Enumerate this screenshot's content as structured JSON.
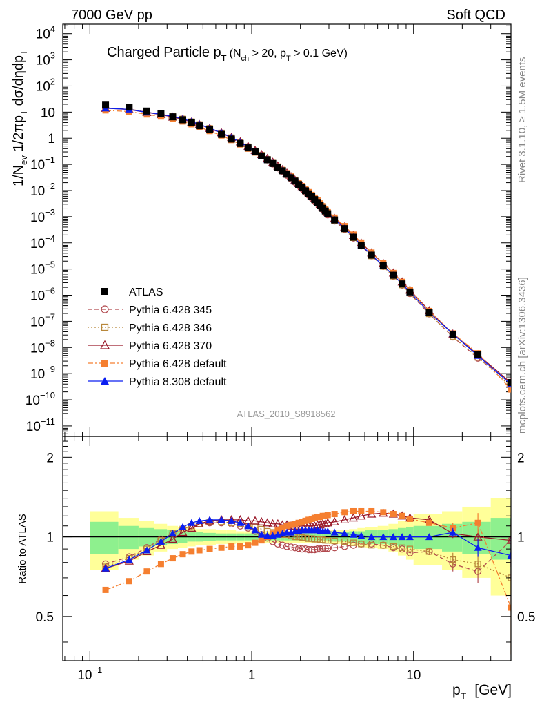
{
  "header": {
    "left": "7000 GeV pp",
    "right": "Soft QCD",
    "side_rivet": "Rivet 3.1.10, ≥ 1.5M events",
    "side_mcplots": "mcplots.cern.ch [arXiv:1306.3436]",
    "analysis_id": "ATLAS_2010_S8918562"
  },
  "chart_data": [
    {
      "type": "scatter",
      "panel": "main",
      "title": "Charged Particle p_T Spectrum",
      "title_sub": "(N_ch > 20, p_T > 0.1 GeV)",
      "title_main_text": "Charged Particle p",
      "title_main_sub": "T",
      "title_cond_pre": "(N",
      "title_cond_sub1": "ch",
      "title_cond_mid": " > 20, p",
      "title_cond_sub2": "T",
      "title_cond_post": " > 0.1 GeV)",
      "ylabel": "1/N_ev 1/2πp_T dσ/dηdp_T",
      "ylabel_parts": {
        "a": "1/N",
        "a_sub": "ev",
        "b": " 1/2πp",
        "b_sub": "T",
        "c": " dσ/dηdp",
        "c_sub": "T"
      },
      "x_scale": "log",
      "y_scale": "log",
      "xlim": [
        0.068,
        40
      ],
      "ylim": [
        4e-12,
        23000.0
      ],
      "grid": false,
      "legend_position": "lower-left",
      "y_tick_exponents": [
        -11,
        -10,
        -9,
        -8,
        -7,
        -6,
        -5,
        -4,
        -3,
        -2,
        -1,
        0,
        1,
        2,
        3,
        4
      ],
      "y_tick_plain": {
        "0": "1",
        "1": "10"
      },
      "series": [
        {
          "name": "ATLAS",
          "color": "#000000",
          "marker": "square-filled",
          "line": "none"
        },
        {
          "name": "Pythia 6.428 345",
          "color": "#b24a4f",
          "marker": "circle-open",
          "line": "dashed"
        },
        {
          "name": "Pythia 6.428 346",
          "color": "#b8873a",
          "marker": "square-open",
          "line": "dotted"
        },
        {
          "name": "Pythia 6.428 370",
          "color": "#9a1a2a",
          "marker": "triangle-open",
          "line": "solid"
        },
        {
          "name": "Pythia 6.428 default",
          "color": "#f57f30",
          "marker": "square-filled",
          "line": "dashdot"
        },
        {
          "name": "Pythia 8.308 default",
          "color": "#0a1ef0",
          "marker": "triangle-filled",
          "line": "solid"
        }
      ],
      "atlas_spectrum": [
        [
          0.125,
          18.5
        ],
        [
          0.175,
          15.5
        ],
        [
          0.225,
          11.0
        ],
        [
          0.275,
          8.6
        ],
        [
          0.325,
          6.6
        ],
        [
          0.375,
          5.1
        ],
        [
          0.425,
          3.9
        ],
        [
          0.475,
          3.0
        ],
        [
          0.55,
          2.1
        ],
        [
          0.65,
          1.4
        ],
        [
          0.75,
          0.93
        ],
        [
          0.85,
          0.63
        ],
        [
          0.95,
          0.43
        ],
        [
          1.05,
          0.3
        ],
        [
          1.15,
          0.21
        ],
        [
          1.25,
          0.15
        ],
        [
          1.35,
          0.108
        ],
        [
          1.45,
          0.078
        ],
        [
          1.55,
          0.057
        ],
        [
          1.65,
          0.042
        ],
        [
          1.75,
          0.031
        ],
        [
          1.85,
          0.023
        ],
        [
          1.95,
          0.017
        ],
        [
          2.05,
          0.013
        ],
        [
          2.15,
          0.0098
        ],
        [
          2.25,
          0.0075
        ],
        [
          2.35,
          0.0058
        ],
        [
          2.45,
          0.0045
        ],
        [
          2.55,
          0.0035
        ],
        [
          2.65,
          0.0027
        ],
        [
          2.75,
          0.0021
        ],
        [
          2.85,
          0.00165
        ],
        [
          2.95,
          0.0013
        ],
        [
          3.25,
          0.00075
        ],
        [
          3.75,
          0.00035
        ],
        [
          4.25,
          0.000165
        ],
        [
          4.75,
          8.2e-05
        ],
        [
          5.5,
          3.4e-05
        ],
        [
          6.5,
          1.35e-05
        ],
        [
          7.5,
          5.8e-06
        ],
        [
          8.5,
          2.7e-06
        ],
        [
          9.5,
          1.33e-06
        ],
        [
          12.5,
          2.2e-07
        ],
        [
          17.5,
          3.2e-08
        ],
        [
          25.0,
          5.3e-09
        ],
        [
          40.0,
          4.6e-10
        ]
      ]
    },
    {
      "type": "line",
      "panel": "ratio",
      "ylabel": "Ratio to ATLAS",
      "x_scale": "log",
      "y_scale": "log",
      "xlim": [
        0.068,
        40
      ],
      "ylim": [
        0.34,
        2.4
      ],
      "reference_line": 1,
      "xlabel_main": "p",
      "xlabel_sub": "T",
      "xlabel_unit": "[GeV]",
      "x_ticks": [
        {
          "value": 0.1,
          "base": "10",
          "exp": "−1"
        },
        {
          "value": 1,
          "base": "1",
          "exp": ""
        },
        {
          "value": 10,
          "base": "10",
          "exp": ""
        }
      ],
      "y_ticks": [
        {
          "value": 0.5,
          "label": "0.5"
        },
        {
          "value": 1,
          "label": "1"
        },
        {
          "value": 2,
          "label": "2"
        }
      ],
      "band_edges": [
        0.1,
        0.15,
        0.2,
        0.25,
        0.3,
        0.35,
        0.4,
        0.45,
        0.5,
        0.6,
        0.7,
        0.8,
        0.9,
        1.0,
        1.1,
        1.2,
        1.3,
        1.4,
        1.5,
        1.6,
        1.7,
        1.8,
        1.9,
        2.0,
        2.1,
        2.2,
        2.3,
        2.4,
        2.5,
        2.6,
        2.7,
        2.8,
        2.9,
        3.0,
        3.5,
        4.0,
        4.5,
        5.0,
        6.0,
        7.0,
        8.0,
        9.0,
        10.0,
        15.0,
        20.0,
        30.0,
        40.0
      ],
      "band_stat": [
        0.14,
        0.1,
        0.08,
        0.07,
        0.06,
        0.05,
        0.04,
        0.04,
        0.035,
        0.03,
        0.03,
        0.03,
        0.03,
        0.03,
        0.03,
        0.03,
        0.03,
        0.03,
        0.03,
        0.03,
        0.03,
        0.03,
        0.03,
        0.03,
        0.03,
        0.03,
        0.03,
        0.03,
        0.03,
        0.03,
        0.03,
        0.03,
        0.03,
        0.04,
        0.04,
        0.05,
        0.05,
        0.06,
        0.06,
        0.07,
        0.08,
        0.09,
        0.1,
        0.12,
        0.14,
        0.18
      ],
      "band_total": [
        0.25,
        0.18,
        0.15,
        0.12,
        0.1,
        0.09,
        0.08,
        0.07,
        0.07,
        0.06,
        0.06,
        0.05,
        0.05,
        0.05,
        0.05,
        0.05,
        0.05,
        0.05,
        0.05,
        0.05,
        0.05,
        0.05,
        0.05,
        0.05,
        0.05,
        0.05,
        0.05,
        0.05,
        0.05,
        0.05,
        0.05,
        0.05,
        0.05,
        0.06,
        0.06,
        0.07,
        0.08,
        0.09,
        0.1,
        0.12,
        0.15,
        0.18,
        0.22,
        0.25,
        0.3,
        0.4
      ],
      "x": [
        0.125,
        0.175,
        0.225,
        0.275,
        0.325,
        0.375,
        0.425,
        0.475,
        0.55,
        0.65,
        0.75,
        0.85,
        0.95,
        1.05,
        1.15,
        1.25,
        1.35,
        1.45,
        1.55,
        1.65,
        1.75,
        1.85,
        1.95,
        2.05,
        2.15,
        2.25,
        2.35,
        2.45,
        2.55,
        2.65,
        2.75,
        2.85,
        2.95,
        3.25,
        3.75,
        4.25,
        4.75,
        5.5,
        6.5,
        7.5,
        8.5,
        9.5,
        12.5,
        17.5,
        25.0,
        40.0
      ],
      "series": [
        {
          "name": "Pythia 6.428 345",
          "color": "#b24a4f",
          "marker": "circle-open",
          "line": "dashed",
          "values": [
            0.79,
            0.84,
            0.91,
            0.98,
            1.03,
            1.07,
            1.1,
            1.12,
            1.13,
            1.13,
            1.12,
            1.1,
            1.08,
            1.05,
            1.02,
            0.99,
            0.96,
            0.94,
            0.93,
            0.92,
            0.915,
            0.91,
            0.905,
            0.9,
            0.9,
            0.895,
            0.895,
            0.895,
            0.9,
            0.9,
            0.905,
            0.905,
            0.905,
            0.91,
            0.92,
            0.93,
            0.94,
            0.94,
            0.93,
            0.91,
            0.9,
            0.87,
            0.88,
            0.79,
            0.74,
            0.97
          ],
          "err": [
            0,
            0,
            0,
            0,
            0,
            0,
            0,
            0,
            0,
            0,
            0,
            0,
            0,
            0,
            0,
            0,
            0,
            0,
            0,
            0,
            0,
            0,
            0,
            0,
            0,
            0,
            0,
            0,
            0,
            0,
            0,
            0,
            0,
            0,
            0,
            0,
            0,
            0,
            0,
            0,
            0,
            0,
            0.02,
            0.05,
            0.07,
            0.15
          ]
        },
        {
          "name": "Pythia 6.428 346",
          "color": "#b8873a",
          "marker": "square-open",
          "line": "dotted",
          "values": [
            0.77,
            0.83,
            0.9,
            0.97,
            1.03,
            1.07,
            1.1,
            1.12,
            1.14,
            1.14,
            1.13,
            1.12,
            1.1,
            1.09,
            1.07,
            1.05,
            1.04,
            1.03,
            1.02,
            1.02,
            1.01,
            1.0,
            1.0,
            0.995,
            0.99,
            0.985,
            0.985,
            0.98,
            0.98,
            0.975,
            0.975,
            0.97,
            0.97,
            0.965,
            0.96,
            0.95,
            0.94,
            0.93,
            0.93,
            0.92,
            0.91,
            0.9,
            0.88,
            0.82,
            0.79,
            0.7
          ],
          "err": [
            0,
            0,
            0,
            0,
            0,
            0,
            0,
            0,
            0,
            0,
            0,
            0,
            0,
            0,
            0,
            0,
            0,
            0,
            0,
            0,
            0,
            0,
            0,
            0,
            0,
            0,
            0,
            0,
            0,
            0,
            0,
            0,
            0,
            0,
            0,
            0,
            0,
            0,
            0,
            0,
            0,
            0,
            0.02,
            0.05,
            0.07,
            0.18
          ]
        },
        {
          "name": "Pythia 6.428 370",
          "color": "#9a1a2a",
          "marker": "triangle-open",
          "line": "solid",
          "values": [
            0.76,
            0.81,
            0.88,
            0.93,
            0.98,
            1.04,
            1.08,
            1.12,
            1.15,
            1.16,
            1.16,
            1.16,
            1.15,
            1.15,
            1.14,
            1.13,
            1.12,
            1.12,
            1.11,
            1.11,
            1.1,
            1.1,
            1.1,
            1.1,
            1.1,
            1.1,
            1.1,
            1.1,
            1.11,
            1.11,
            1.12,
            1.12,
            1.13,
            1.14,
            1.16,
            1.18,
            1.2,
            1.22,
            1.23,
            1.22,
            1.2,
            1.18,
            1.16,
            1.03,
            1.0,
            0.97
          ],
          "err": [
            0,
            0,
            0,
            0,
            0,
            0,
            0,
            0,
            0,
            0,
            0,
            0,
            0,
            0,
            0,
            0,
            0,
            0,
            0,
            0,
            0,
            0,
            0,
            0,
            0,
            0,
            0,
            0,
            0,
            0,
            0,
            0,
            0,
            0,
            0,
            0,
            0,
            0,
            0,
            0,
            0,
            0,
            0.02,
            0.04,
            0.07,
            0.2
          ]
        },
        {
          "name": "Pythia 6.428 default",
          "color": "#f57f30",
          "marker": "square-filled",
          "line": "dashdot",
          "values": [
            0.63,
            0.68,
            0.74,
            0.79,
            0.83,
            0.86,
            0.88,
            0.89,
            0.9,
            0.91,
            0.92,
            0.92,
            0.93,
            0.95,
            0.97,
            1.0,
            1.03,
            1.06,
            1.08,
            1.1,
            1.11,
            1.12,
            1.13,
            1.14,
            1.15,
            1.16,
            1.17,
            1.18,
            1.19,
            1.19,
            1.2,
            1.2,
            1.21,
            1.22,
            1.24,
            1.25,
            1.25,
            1.25,
            1.24,
            1.22,
            1.2,
            1.17,
            1.13,
            1.08,
            1.13,
            0.54
          ],
          "err": [
            0,
            0,
            0,
            0,
            0,
            0,
            0,
            0,
            0,
            0,
            0,
            0,
            0,
            0,
            0,
            0,
            0,
            0,
            0,
            0,
            0,
            0,
            0,
            0,
            0,
            0,
            0,
            0,
            0,
            0,
            0,
            0,
            0,
            0,
            0,
            0,
            0,
            0,
            0,
            0,
            0,
            0,
            0.02,
            0.05,
            0.1,
            0.18
          ]
        },
        {
          "name": "Pythia 8.308 default",
          "color": "#0a1ef0",
          "marker": "triangle-filled",
          "line": "solid",
          "values": [
            0.76,
            0.82,
            0.89,
            0.96,
            1.03,
            1.09,
            1.13,
            1.15,
            1.16,
            1.16,
            1.15,
            1.13,
            1.1,
            1.06,
            1.02,
            1.01,
            1.01,
            1.02,
            1.03,
            1.04,
            1.04,
            1.05,
            1.05,
            1.06,
            1.06,
            1.06,
            1.06,
            1.06,
            1.06,
            1.05,
            1.05,
            1.05,
            1.05,
            1.04,
            1.03,
            1.02,
            1.01,
            1.0,
            1.0,
            1.0,
            1.0,
            1.0,
            1.0,
            1.04,
            0.91,
            0.85
          ],
          "err": [
            0,
            0,
            0,
            0,
            0,
            0,
            0,
            0,
            0,
            0,
            0,
            0,
            0,
            0,
            0,
            0,
            0,
            0,
            0,
            0,
            0,
            0,
            0,
            0,
            0,
            0,
            0,
            0,
            0,
            0,
            0,
            0,
            0,
            0,
            0,
            0,
            0,
            0,
            0,
            0,
            0,
            0,
            0.02,
            0.04,
            0.07,
            0.15
          ]
        }
      ]
    }
  ]
}
